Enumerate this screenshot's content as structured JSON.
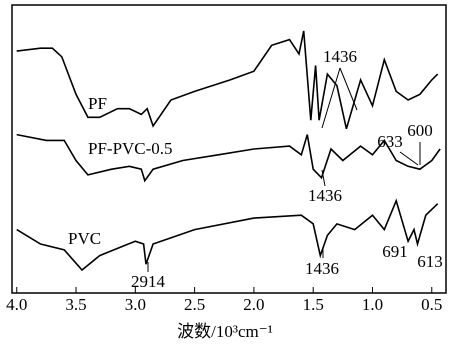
{
  "chart_data": {
    "type": "line",
    "x_label": "波数/10³cm⁻¹",
    "xlim": [
      4.04,
      0.38
    ],
    "ylim": [
      0,
      100
    ],
    "xticks": [
      {
        "value": 4,
        "label": "4.0"
      },
      3.5,
      {
        "value": 3,
        "label": "3.0"
      },
      2.5,
      {
        "value": 2,
        "label": "2.0"
      },
      1.5,
      {
        "value": 1,
        "label": "1.0"
      },
      0.5
    ],
    "series": [
      {
        "name": "PF",
        "color": "#000000",
        "x": [
          4.0,
          3.8,
          3.7,
          3.62,
          3.5,
          3.4,
          3.3,
          3.15,
          3.05,
          2.95,
          2.9,
          2.85,
          2.7,
          2.5,
          2.2,
          2.0,
          1.85,
          1.7,
          1.62,
          1.58,
          1.52,
          1.48,
          1.45,
          1.38,
          1.3,
          1.22,
          1.1,
          1.0,
          0.9,
          0.8,
          0.7,
          0.6,
          0.5,
          0.45
        ],
        "values": [
          84,
          85,
          85,
          82,
          69,
          61,
          61,
          64,
          64,
          62,
          64,
          58,
          67,
          70,
          74,
          77,
          86,
          88,
          83,
          91,
          60,
          79,
          60,
          76,
          72,
          57,
          74,
          65,
          81,
          70,
          67,
          69,
          74,
          76
        ]
      },
      {
        "name": "PF-PVC-0.5",
        "color": "#000000",
        "x": [
          4.0,
          3.75,
          3.6,
          3.5,
          3.4,
          3.2,
          3.05,
          2.95,
          2.92,
          2.85,
          2.6,
          2.3,
          2.0,
          1.7,
          1.6,
          1.55,
          1.5,
          1.43,
          1.35,
          1.25,
          1.1,
          1.0,
          0.9,
          0.8,
          0.7,
          0.6,
          0.5,
          0.43
        ],
        "values": [
          55,
          53,
          53,
          46,
          41,
          43,
          44,
          43,
          39,
          43,
          46,
          48,
          50,
          51,
          48,
          55,
          43,
          40,
          50,
          46,
          51,
          48,
          53,
          46,
          44,
          43,
          46,
          50
        ]
      },
      {
        "name": "PVC",
        "color": "#000000",
        "x": [
          4.0,
          3.8,
          3.6,
          3.45,
          3.3,
          3.0,
          2.93,
          2.91,
          2.85,
          2.5,
          2.0,
          1.6,
          1.5,
          1.44,
          1.38,
          1.3,
          1.15,
          1.0,
          0.9,
          0.8,
          0.7,
          0.65,
          0.62,
          0.55,
          0.45
        ],
        "values": [
          22,
          17,
          15,
          8,
          13,
          18,
          17,
          10,
          17,
          22,
          26,
          27,
          24,
          13,
          20,
          24,
          22,
          27,
          22,
          32,
          18,
          22,
          17,
          27,
          31
        ]
      }
    ],
    "annotations": [
      "1436",
      "1436",
      "633",
      "600",
      "2914",
      "1436",
      "691",
      "613"
    ]
  }
}
